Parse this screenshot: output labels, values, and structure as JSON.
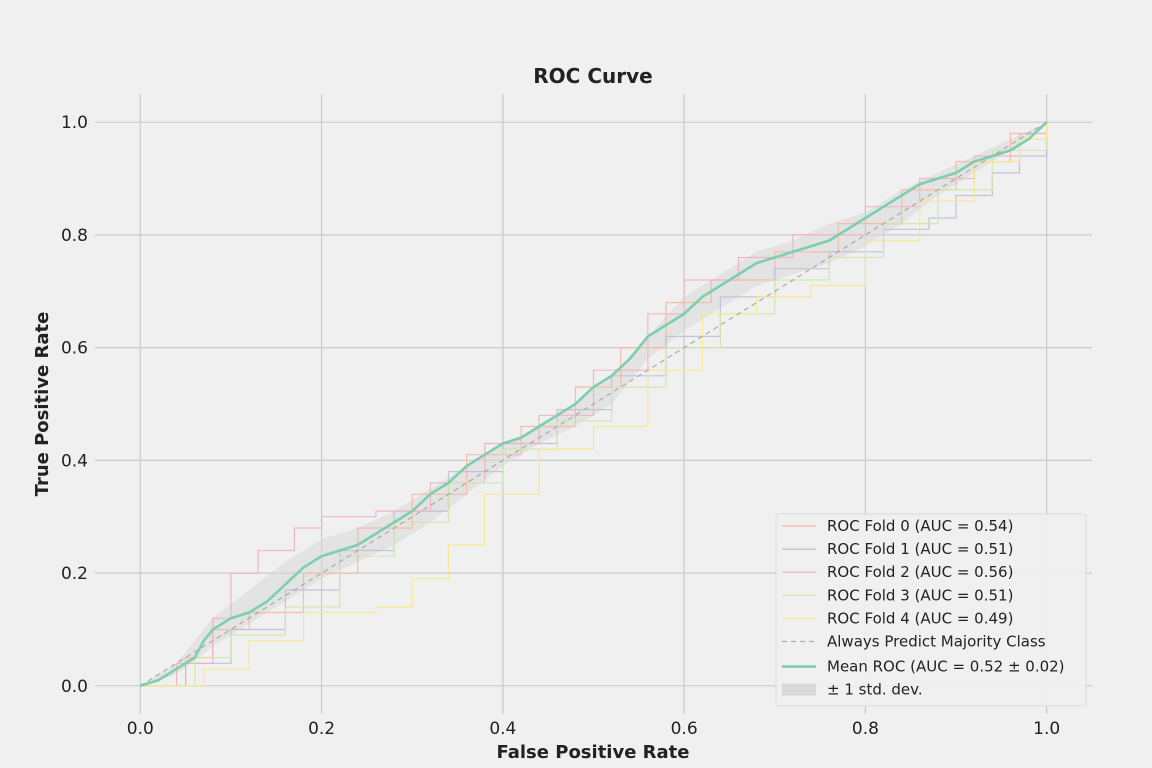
{
  "chart_data": {
    "type": "line",
    "title": "ROC Curve",
    "xlabel": "False Positive Rate",
    "ylabel": "True Positive Rate",
    "xlim": [
      -0.05,
      1.05
    ],
    "ylim": [
      -0.05,
      1.05
    ],
    "xticks": [
      "0.0",
      "0.2",
      "0.4",
      "0.6",
      "0.8",
      "1.0"
    ],
    "yticks": [
      "0.0",
      "0.2",
      "0.4",
      "0.6",
      "0.8",
      "1.0"
    ],
    "grid": true,
    "legend_position": "lower-right",
    "series": [
      {
        "name": "ROC Fold 0 (AUC = 0.54)",
        "color": "#f4b8a0",
        "style": "step-thin",
        "x": [
          0,
          0.05,
          0.08,
          0.12,
          0.18,
          0.24,
          0.3,
          0.36,
          0.42,
          0.48,
          0.53,
          0.58,
          0.63,
          0.7,
          0.77,
          0.84,
          0.9,
          0.96,
          1
        ],
        "y": [
          0,
          0.05,
          0.1,
          0.13,
          0.2,
          0.28,
          0.34,
          0.41,
          0.46,
          0.53,
          0.6,
          0.68,
          0.72,
          0.77,
          0.82,
          0.88,
          0.93,
          0.98,
          1
        ]
      },
      {
        "name": "ROC Fold 1 (AUC = 0.51)",
        "color": "#bcbcd8",
        "style": "step-thin",
        "x": [
          0,
          0.05,
          0.1,
          0.16,
          0.22,
          0.28,
          0.34,
          0.4,
          0.46,
          0.52,
          0.58,
          0.64,
          0.7,
          0.76,
          0.82,
          0.87,
          0.9,
          0.94,
          0.97,
          1
        ],
        "y": [
          0,
          0.04,
          0.1,
          0.17,
          0.24,
          0.31,
          0.38,
          0.43,
          0.49,
          0.55,
          0.62,
          0.69,
          0.74,
          0.77,
          0.81,
          0.83,
          0.87,
          0.91,
          0.94,
          1
        ]
      },
      {
        "name": "ROC Fold 2 (AUC = 0.56)",
        "color": "#f0b0c0",
        "style": "step-thin",
        "x": [
          0,
          0.04,
          0.08,
          0.1,
          0.13,
          0.17,
          0.2,
          0.26,
          0.32,
          0.38,
          0.44,
          0.5,
          0.56,
          0.6,
          0.66,
          0.72,
          0.8,
          0.86,
          0.92,
          0.97,
          1
        ],
        "y": [
          0,
          0.04,
          0.12,
          0.2,
          0.24,
          0.28,
          0.3,
          0.31,
          0.36,
          0.43,
          0.48,
          0.56,
          0.66,
          0.72,
          0.76,
          0.8,
          0.85,
          0.9,
          0.94,
          0.98,
          1
        ]
      },
      {
        "name": "ROC Fold 3 (AUC = 0.51)",
        "color": "#cce8a8",
        "style": "step-thin",
        "x": [
          0,
          0.06,
          0.1,
          0.16,
          0.22,
          0.28,
          0.34,
          0.4,
          0.46,
          0.52,
          0.58,
          0.64,
          0.7,
          0.76,
          0.82,
          0.88,
          0.94,
          1
        ],
        "y": [
          0,
          0.05,
          0.09,
          0.14,
          0.23,
          0.29,
          0.36,
          0.42,
          0.47,
          0.53,
          0.6,
          0.66,
          0.72,
          0.76,
          0.82,
          0.88,
          0.95,
          1
        ]
      },
      {
        "name": "ROC Fold 4 (AUC = 0.49)",
        "color": "#f6e88c",
        "style": "step-thin",
        "x": [
          0,
          0.07,
          0.12,
          0.18,
          0.26,
          0.3,
          0.34,
          0.38,
          0.44,
          0.5,
          0.56,
          0.62,
          0.68,
          0.74,
          0.8,
          0.86,
          0.92,
          0.97,
          1
        ],
        "y": [
          0,
          0.03,
          0.08,
          0.13,
          0.14,
          0.19,
          0.25,
          0.34,
          0.42,
          0.46,
          0.56,
          0.66,
          0.69,
          0.71,
          0.79,
          0.86,
          0.93,
          0.97,
          1
        ]
      },
      {
        "name": "Always Predict Majority Class",
        "color": "#aaaaaa",
        "style": "dashed",
        "x": [
          0,
          1
        ],
        "y": [
          0,
          1
        ]
      },
      {
        "name": "Mean ROC (AUC = 0.52 ± 0.02)",
        "color": "#7ccfae",
        "style": "mean",
        "x": [
          0,
          0.02,
          0.04,
          0.06,
          0.07,
          0.08,
          0.1,
          0.12,
          0.14,
          0.16,
          0.18,
          0.2,
          0.22,
          0.24,
          0.26,
          0.28,
          0.3,
          0.32,
          0.34,
          0.36,
          0.38,
          0.4,
          0.42,
          0.44,
          0.46,
          0.48,
          0.5,
          0.52,
          0.54,
          0.56,
          0.58,
          0.6,
          0.62,
          0.64,
          0.66,
          0.68,
          0.7,
          0.72,
          0.74,
          0.76,
          0.78,
          0.8,
          0.82,
          0.84,
          0.86,
          0.88,
          0.9,
          0.92,
          0.94,
          0.96,
          0.98,
          1
        ],
        "y": [
          0,
          0.01,
          0.03,
          0.05,
          0.08,
          0.1,
          0.12,
          0.13,
          0.15,
          0.18,
          0.21,
          0.23,
          0.24,
          0.25,
          0.27,
          0.29,
          0.31,
          0.34,
          0.36,
          0.39,
          0.41,
          0.43,
          0.44,
          0.46,
          0.48,
          0.5,
          0.53,
          0.55,
          0.58,
          0.62,
          0.64,
          0.66,
          0.69,
          0.71,
          0.73,
          0.75,
          0.76,
          0.77,
          0.78,
          0.79,
          0.81,
          0.83,
          0.85,
          0.87,
          0.89,
          0.9,
          0.91,
          0.93,
          0.94,
          0.95,
          0.97,
          1
        ]
      },
      {
        "name": "± 1 std. dev.",
        "color": "#d8d8d8",
        "style": "band",
        "x": [],
        "y": []
      }
    ],
    "std_band": {
      "x": [
        0,
        0.04,
        0.08,
        0.12,
        0.16,
        0.2,
        0.24,
        0.28,
        0.32,
        0.36,
        0.4,
        0.44,
        0.48,
        0.52,
        0.56,
        0.6,
        0.64,
        0.68,
        0.72,
        0.76,
        0.8,
        0.84,
        0.88,
        0.92,
        0.96,
        1
      ],
      "upper": [
        0,
        0.04,
        0.12,
        0.17,
        0.22,
        0.26,
        0.28,
        0.31,
        0.35,
        0.39,
        0.43,
        0.46,
        0.5,
        0.55,
        0.62,
        0.69,
        0.73,
        0.77,
        0.79,
        0.82,
        0.84,
        0.88,
        0.91,
        0.94,
        0.97,
        1
      ],
      "lower": [
        0,
        0.02,
        0.07,
        0.11,
        0.15,
        0.19,
        0.22,
        0.25,
        0.29,
        0.34,
        0.39,
        0.43,
        0.46,
        0.5,
        0.58,
        0.63,
        0.67,
        0.71,
        0.73,
        0.75,
        0.78,
        0.82,
        0.87,
        0.91,
        0.95,
        1
      ]
    }
  }
}
